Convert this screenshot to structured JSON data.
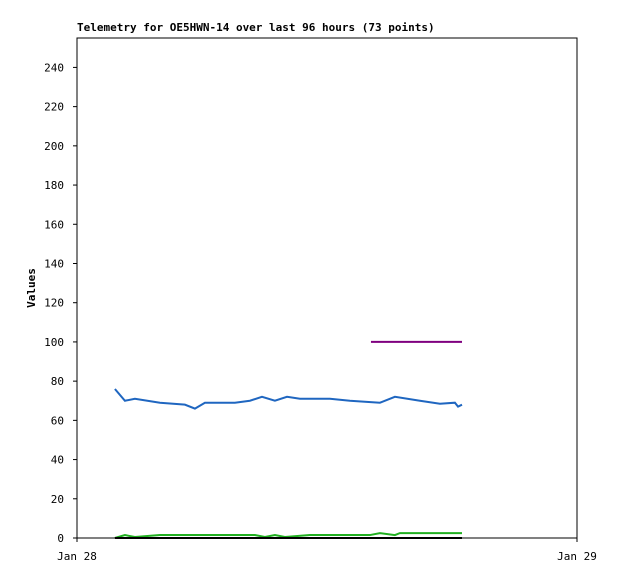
{
  "chart_data": {
    "type": "line",
    "title": "Telemetry for OE5HWN-14 over last 96 hours (73 points)",
    "y_label": "Values",
    "xlim": [
      0,
      24
    ],
    "xticks": [
      {
        "value": 0,
        "label": "Jan 28"
      },
      {
        "value": 24,
        "label": "Jan 29"
      }
    ],
    "ylim": [
      0,
      255
    ],
    "yticks": [
      0,
      20,
      40,
      60,
      80,
      100,
      120,
      140,
      160,
      180,
      200,
      220,
      240
    ],
    "series": [
      {
        "color": "#1f66c0",
        "x": [
          1.82,
          2.3,
          2.78,
          3.98,
          5.18,
          5.66,
          6.14,
          7.58,
          8.3,
          8.88,
          9.5,
          10.08,
          10.7,
          12.14,
          13.1,
          13.82,
          14.54,
          15.26,
          16.46,
          17.42,
          18.14,
          18.29,
          18.48
        ],
        "values": [
          76,
          70,
          71,
          69,
          68,
          66,
          69,
          69,
          70,
          72,
          70,
          72,
          71,
          71,
          70,
          69.5,
          69,
          72,
          70,
          68.5,
          69,
          67,
          68
        ]
      },
      {
        "color": "#7f007f",
        "x": [
          14.11,
          18.48
        ],
        "values": [
          100,
          100
        ]
      },
      {
        "color": "#20b020",
        "x": [
          1.82,
          2.3,
          2.78,
          3.98,
          8.54,
          9.02,
          9.5,
          9.98,
          11.18,
          14.06,
          14.54,
          15.26,
          15.5,
          18.48
        ],
        "values": [
          0,
          1.5,
          0.5,
          1.5,
          1.5,
          0.5,
          1.5,
          0.5,
          1.5,
          1.5,
          2.5,
          1.5,
          2.5,
          2.5
        ]
      },
      {
        "color": "#000000",
        "x": [
          1.82,
          18.48
        ],
        "values": [
          0,
          0
        ]
      }
    ]
  }
}
